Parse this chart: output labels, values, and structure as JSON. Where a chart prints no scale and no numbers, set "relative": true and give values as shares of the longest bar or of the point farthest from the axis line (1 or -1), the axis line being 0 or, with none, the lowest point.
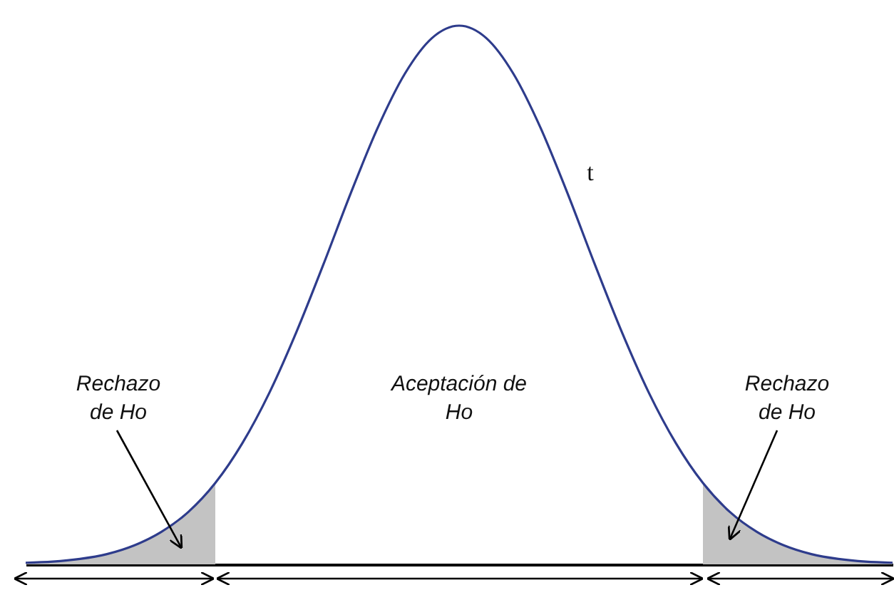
{
  "chart_data": {
    "type": "line",
    "relative": true,
    "categories": [
      null,
      null,
      null,
      null,
      null,
      null,
      null,
      null,
      null,
      null,
      null,
      null,
      null,
      null,
      null,
      null,
      null,
      null,
      null,
      null,
      null,
      null,
      null,
      null,
      null,
      null,
      null,
      null,
      null,
      null,
      null,
      null,
      null
    ],
    "series": [
      {
        "type": "area",
        "color": "#c3c3c3",
        "values": [
          0.003,
          0.005,
          0.01,
          0.019,
          0.035,
          0.06,
          0.097,
          0.151,
          null,
          null,
          null,
          null,
          null,
          null,
          null,
          null,
          null,
          null,
          null,
          null,
          null,
          null,
          null,
          null,
          null,
          null,
          null,
          null,
          null,
          null,
          null,
          null,
          null
        ]
      },
      {
        "type": "area",
        "color": "#c3c3c3",
        "values": [
          null,
          null,
          null,
          null,
          null,
          null,
          null,
          null,
          null,
          null,
          null,
          null,
          null,
          null,
          null,
          null,
          null,
          null,
          null,
          null,
          null,
          null,
          null,
          null,
          null,
          0.151,
          0.097,
          0.06,
          0.035,
          0.019,
          0.01,
          0.005,
          0.003
        ]
      },
      {
        "name": "t",
        "color": "#2e3c8c",
        "values": [
          0.003,
          0.005,
          0.01,
          0.019,
          0.035,
          0.06,
          0.097,
          0.151,
          0.225,
          0.319,
          0.432,
          0.558,
          0.689,
          0.811,
          0.911,
          0.977,
          1,
          0.977,
          0.911,
          0.811,
          0.689,
          0.558,
          0.432,
          0.319,
          0.225,
          0.151,
          0.097,
          0.06,
          0.035,
          0.019,
          0.01,
          0.005,
          0.003
        ]
      }
    ],
    "annotations": [
      "Rechazo de Ho",
      "Aceptación de Ho",
      "Rechazo de Ho"
    ]
  }
}
